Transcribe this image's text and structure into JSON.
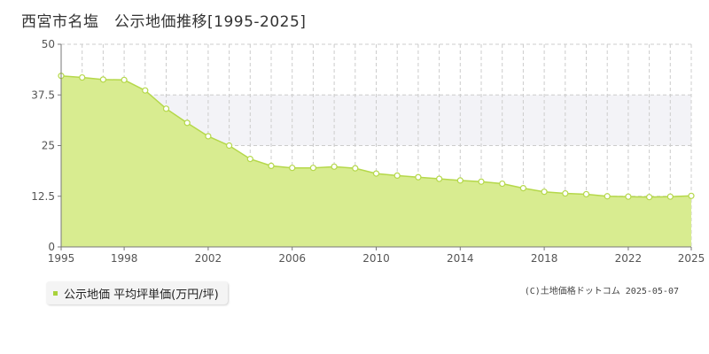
{
  "title": "西宮市名塩　公示地価推移[1995-2025]",
  "legend": {
    "label": "公示地価 平均坪単価(万円/坪)"
  },
  "copyright": "(C)土地価格ドットコム 2025-05-07",
  "colors": {
    "area_fill": "#d8ec90",
    "line": "#b5d84a",
    "band": "#f3f3f7",
    "grid": "#cccccc",
    "axis": "#777777",
    "legend_swatch": "#a8d23c"
  },
  "chart_data": {
    "type": "area",
    "title": "西宮市名塩　公示地価推移[1995-2025]",
    "xlabel": "",
    "ylabel": "",
    "xlim": [
      1995,
      2025
    ],
    "ylim": [
      0,
      50
    ],
    "yticks": [
      "0",
      "12.5",
      "25",
      "37.5",
      "50"
    ],
    "xticks": [
      "1995",
      "1998",
      "2002",
      "2006",
      "2010",
      "2014",
      "2018",
      "2022",
      "2025"
    ],
    "grid": true,
    "shaded_band": [
      25,
      37.5
    ],
    "legend_position": "bottom-left",
    "series": [
      {
        "name": "公示地価 平均坪単価(万円/坪)",
        "x": [
          1995,
          1996,
          1997,
          1998,
          1999,
          2000,
          2001,
          2002,
          2003,
          2004,
          2005,
          2006,
          2007,
          2008,
          2009,
          2010,
          2011,
          2012,
          2013,
          2014,
          2015,
          2016,
          2017,
          2018,
          2019,
          2020,
          2021,
          2022,
          2023,
          2024,
          2025
        ],
        "values": [
          42.2,
          41.8,
          41.3,
          41.2,
          38.6,
          34.1,
          30.6,
          27.3,
          25.0,
          21.7,
          20.0,
          19.5,
          19.5,
          19.8,
          19.4,
          18.1,
          17.6,
          17.2,
          16.8,
          16.4,
          16.1,
          15.6,
          14.5,
          13.6,
          13.2,
          13.0,
          12.5,
          12.4,
          12.3,
          12.4,
          12.6
        ]
      }
    ]
  }
}
